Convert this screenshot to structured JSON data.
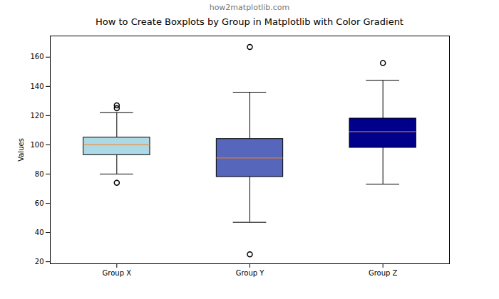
{
  "chart_data": {
    "type": "boxplot",
    "title": "How to Create Boxplots by Group in Matplotlib with Color Gradient",
    "subtitle": "how2matplotlib.com",
    "y_label": "Values",
    "categories": [
      "Group X",
      "Group Y",
      "Group Z"
    ],
    "colors": [
      "#add8e6",
      "#5566bb",
      "#00008b"
    ],
    "boxes": [
      {
        "name": "Group X",
        "whislo": 80,
        "q1": 93,
        "median": 100,
        "q3": 105,
        "whishi": 122,
        "fliers": [
          74,
          125,
          127
        ]
      },
      {
        "name": "Group Y",
        "whislo": 47,
        "q1": 78,
        "median": 91,
        "q3": 104,
        "whishi": 136,
        "fliers": [
          25,
          167
        ]
      },
      {
        "name": "Group Z",
        "whislo": 73,
        "q1": 98,
        "median": 109,
        "q3": 118,
        "whishi": 144,
        "fliers": [
          156
        ]
      }
    ],
    "ylim": [
      18.6,
      174.5
    ],
    "yticks": [
      20,
      40,
      60,
      80,
      100,
      120,
      140,
      160
    ],
    "grid": false
  }
}
